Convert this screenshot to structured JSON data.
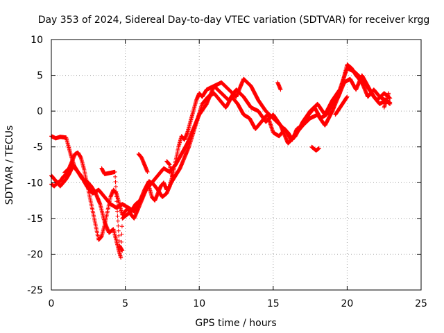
{
  "chart_data": {
    "type": "scatter",
    "title": "Day 353 of 2024, Sidereal Day-to-day VTEC variation (SDTVAR) for receiver krgg",
    "xlabel": "GPS time / hours",
    "ylabel": "SDTVAR / TECUs",
    "xlim": [
      0,
      25
    ],
    "ylim": [
      -25,
      10
    ],
    "xticks": [
      0,
      5,
      10,
      15,
      20,
      25
    ],
    "yticks": [
      -25,
      -20,
      -15,
      -10,
      -5,
      0,
      5,
      10
    ],
    "grid": true,
    "marker": "+",
    "series": [
      {
        "name": "SDTVAR",
        "color": "#ff0000",
        "x": [
          0.0,
          0.2,
          0.4,
          0.6,
          0.8,
          1.0,
          1.2,
          1.4,
          1.6,
          1.8,
          2.0,
          2.2,
          2.4,
          2.6,
          2.8,
          3.0,
          3.2,
          3.4,
          3.6,
          3.8,
          4.0,
          4.2,
          4.4,
          4.6,
          4.8,
          5.0,
          5.2,
          5.4,
          5.6,
          5.8,
          6.0,
          6.2,
          6.4,
          6.6,
          6.8,
          7.0,
          7.2,
          7.4,
          7.6,
          7.8,
          8.0,
          8.2,
          8.4,
          8.6,
          8.8,
          9.0,
          9.2,
          9.4,
          9.6,
          9.8,
          10.0,
          10.2,
          10.5,
          11.0,
          11.5,
          12.0,
          12.5,
          13.0,
          13.5,
          14.0,
          14.5,
          15.0,
          15.5,
          16.0,
          16.3,
          16.6,
          17.0,
          17.5,
          18.0,
          18.5,
          19.0,
          19.5,
          20.0,
          20.3,
          20.6,
          21.0,
          21.4,
          21.8,
          22.2,
          22.6,
          22.9
        ],
        "y": [
          -10.2,
          -10.5,
          -10.0,
          -9.8,
          -9.2,
          -8.8,
          -8.0,
          -7.0,
          -6.0,
          -5.8,
          -6.5,
          -8.0,
          -10.0,
          -12.0,
          -14.0,
          -16.0,
          -18.0,
          -17.5,
          -16.0,
          -14.0,
          -12.0,
          -11.0,
          -11.5,
          -13.0,
          -14.5,
          -14.0,
          -13.5,
          -14.5,
          -15.0,
          -14.0,
          -13.0,
          -12.0,
          -11.0,
          -10.5,
          -12.0,
          -12.5,
          -11.5,
          -10.5,
          -10.0,
          -11.0,
          -10.5,
          -9.0,
          -7.0,
          -5.0,
          -3.5,
          -4.0,
          -3.0,
          -1.5,
          0.0,
          1.5,
          2.5,
          2.0,
          3.0,
          3.5,
          2.5,
          1.5,
          3.0,
          2.0,
          0.5,
          0.0,
          -1.5,
          -0.5,
          -2.0,
          -3.0,
          -4.0,
          -2.5,
          -2.0,
          -1.0,
          -0.5,
          -2.0,
          0.0,
          2.5,
          6.5,
          6.0,
          5.0,
          4.0,
          2.0,
          3.0,
          2.0,
          1.5,
          1.0
        ]
      },
      {
        "name": "SDTVAR-b",
        "color": "#ff0000",
        "x": [
          0.0,
          0.3,
          0.6,
          1.0,
          1.3,
          1.6,
          2.0,
          2.4,
          2.8,
          3.2,
          3.6,
          4.0,
          4.4,
          4.8,
          5.2,
          5.6,
          6.0,
          6.4,
          6.8,
          7.2,
          7.6,
          8.0,
          8.4,
          8.8,
          9.2,
          9.6,
          10.0,
          10.5,
          11.0,
          11.5,
          12.0,
          12.5,
          13.0,
          13.5,
          14.0,
          14.5,
          15.0,
          15.5,
          16.0,
          16.5,
          17.0,
          17.5,
          18.0,
          18.5,
          19.0,
          19.5,
          20.0,
          20.5,
          21.0,
          21.5,
          22.0,
          22.5,
          22.9
        ],
        "y": [
          -3.5,
          -3.8,
          -3.6,
          -3.7,
          -6.0,
          -8.0,
          -9.0,
          -10.5,
          -11.5,
          -11.0,
          -12.0,
          -13.0,
          -13.5,
          -13.0,
          -13.5,
          -14.0,
          -12.5,
          -11.0,
          -10.0,
          -9.0,
          -8.0,
          -8.5,
          -7.5,
          -6.0,
          -4.5,
          -2.5,
          -0.5,
          1.0,
          3.5,
          4.0,
          3.0,
          2.0,
          4.5,
          3.5,
          1.5,
          0.0,
          -1.0,
          -2.0,
          -4.5,
          -3.5,
          -1.5,
          0.0,
          1.0,
          -0.5,
          1.5,
          3.0,
          6.0,
          5.5,
          4.5,
          3.0,
          1.5,
          2.5,
          1.8
        ]
      },
      {
        "name": "SDTVAR-c",
        "color": "#ff0000",
        "x": [
          0.0,
          0.2,
          0.4,
          0.6,
          0.8,
          1.0,
          1.2,
          1.5,
          1.8,
          2.1,
          2.4,
          2.7,
          3.0,
          3.3,
          3.6,
          3.9,
          4.2,
          4.5,
          4.7,
          4.8,
          5.1,
          5.4,
          5.7,
          6.0,
          6.3,
          6.6,
          6.9,
          7.2,
          7.5,
          7.8,
          8.1,
          8.4,
          8.7,
          9.0,
          9.3,
          9.6,
          9.9,
          10.2,
          10.6,
          11.0,
          11.4,
          11.8,
          12.2,
          12.6,
          13.0,
          13.4,
          13.8,
          14.2,
          14.6,
          15.0,
          15.4,
          15.8,
          16.2,
          16.6,
          17.0,
          17.4,
          17.8,
          18.2,
          18.6,
          19.0,
          19.4,
          19.8,
          20.2,
          20.6,
          21.0,
          21.4,
          21.8,
          22.2,
          22.6,
          22.9
        ],
        "y": [
          -9.0,
          -9.5,
          -10.0,
          -10.5,
          -10.0,
          -9.5,
          -8.8,
          -7.5,
          -8.5,
          -9.5,
          -9.8,
          -10.5,
          -11.5,
          -13.0,
          -15.5,
          -17.0,
          -16.5,
          -19.0,
          -20.5,
          -15.0,
          -14.5,
          -14.0,
          -13.0,
          -12.5,
          -11.0,
          -9.8,
          -10.2,
          -11.0,
          -12.0,
          -11.5,
          -10.0,
          -9.0,
          -8.0,
          -6.5,
          -5.0,
          -3.0,
          -1.0,
          1.0,
          2.0,
          2.5,
          1.5,
          0.5,
          2.0,
          1.0,
          -0.5,
          -1.0,
          -2.5,
          -1.5,
          -0.5,
          -3.0,
          -3.5,
          -2.5,
          -4.0,
          -3.0,
          -2.0,
          -0.5,
          0.5,
          -1.0,
          -0.5,
          1.0,
          2.0,
          4.0,
          4.5,
          3.0,
          5.0,
          3.5,
          2.0,
          1.0,
          1.5,
          1.2
        ]
      },
      {
        "name": "SDTVAR-d",
        "color": "#ff0000",
        "x": [
          0.9,
          1.3,
          3.4,
          3.6,
          4.3,
          4.6,
          4.8,
          5.9,
          6.1,
          6.5,
          7.8,
          8.0,
          8.2,
          15.3,
          15.5,
          17.6,
          17.9,
          18.1,
          19.2,
          20.0,
          22.5,
          22.8
        ],
        "y": [
          -8.6,
          -7.8,
          -8.0,
          -8.8,
          -8.5,
          -18.8,
          -19.5,
          -6.0,
          -6.5,
          -8.5,
          -7.0,
          -7.5,
          -9.5,
          4.0,
          3.0,
          -5.0,
          -5.5,
          -5.2,
          -0.5,
          2.0,
          0.5,
          2.5
        ]
      }
    ]
  }
}
